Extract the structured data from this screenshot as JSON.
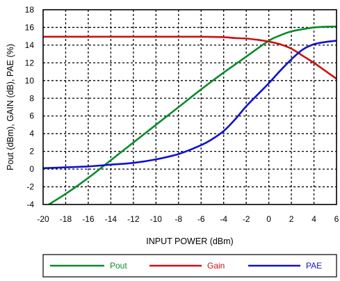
{
  "chart_data": {
    "type": "line",
    "xlabel": "INPUT POWER (dBm)",
    "ylabel": "Pout (dBm), GAIN (dB), PAE (%)",
    "xlim": [
      -20,
      6
    ],
    "ylim": [
      -4,
      18
    ],
    "x_ticks": [
      -20,
      -18,
      -16,
      -14,
      -12,
      -10,
      -8,
      -6,
      -4,
      -2,
      0,
      2,
      4,
      6
    ],
    "y_ticks": [
      -4,
      -2,
      0,
      2,
      4,
      6,
      8,
      10,
      12,
      14,
      16,
      18
    ],
    "grid": "dotted",
    "legend_position": "bottom",
    "series": [
      {
        "name": "Pout",
        "color": "#0a8a2a",
        "x": [
          -19.5,
          -18,
          -16,
          -14,
          -12,
          -10,
          -8,
          -6,
          -4,
          -2,
          0,
          1,
          2,
          3,
          4,
          5,
          6
        ],
        "y": [
          -4.0,
          -2.8,
          -1.0,
          1.0,
          3.0,
          5.0,
          7.0,
          9.0,
          10.9,
          12.7,
          14.5,
          15.1,
          15.55,
          15.8,
          16.0,
          16.08,
          16.1
        ]
      },
      {
        "name": "Gain",
        "color": "#cc1111",
        "x": [
          -20,
          -16,
          -12,
          -8,
          -6,
          -4,
          -3,
          -2,
          -1,
          0,
          1,
          2,
          3,
          4,
          5,
          6
        ],
        "y": [
          14.95,
          14.95,
          14.95,
          14.95,
          14.95,
          14.9,
          14.8,
          14.75,
          14.6,
          14.4,
          14.1,
          13.6,
          12.8,
          12.0,
          11.1,
          10.2
        ]
      },
      {
        "name": "PAE",
        "color": "#1111cc",
        "x": [
          -20,
          -18,
          -16,
          -14,
          -12,
          -10,
          -8,
          -6,
          -5,
          -4,
          -3,
          -2,
          -1,
          0,
          1,
          2,
          3,
          4,
          5,
          6
        ],
        "y": [
          0.1,
          0.2,
          0.3,
          0.5,
          0.7,
          1.1,
          1.7,
          2.7,
          3.4,
          4.3,
          5.6,
          7.1,
          8.4,
          9.7,
          11.1,
          12.4,
          13.5,
          14.1,
          14.35,
          14.5
        ]
      }
    ]
  }
}
